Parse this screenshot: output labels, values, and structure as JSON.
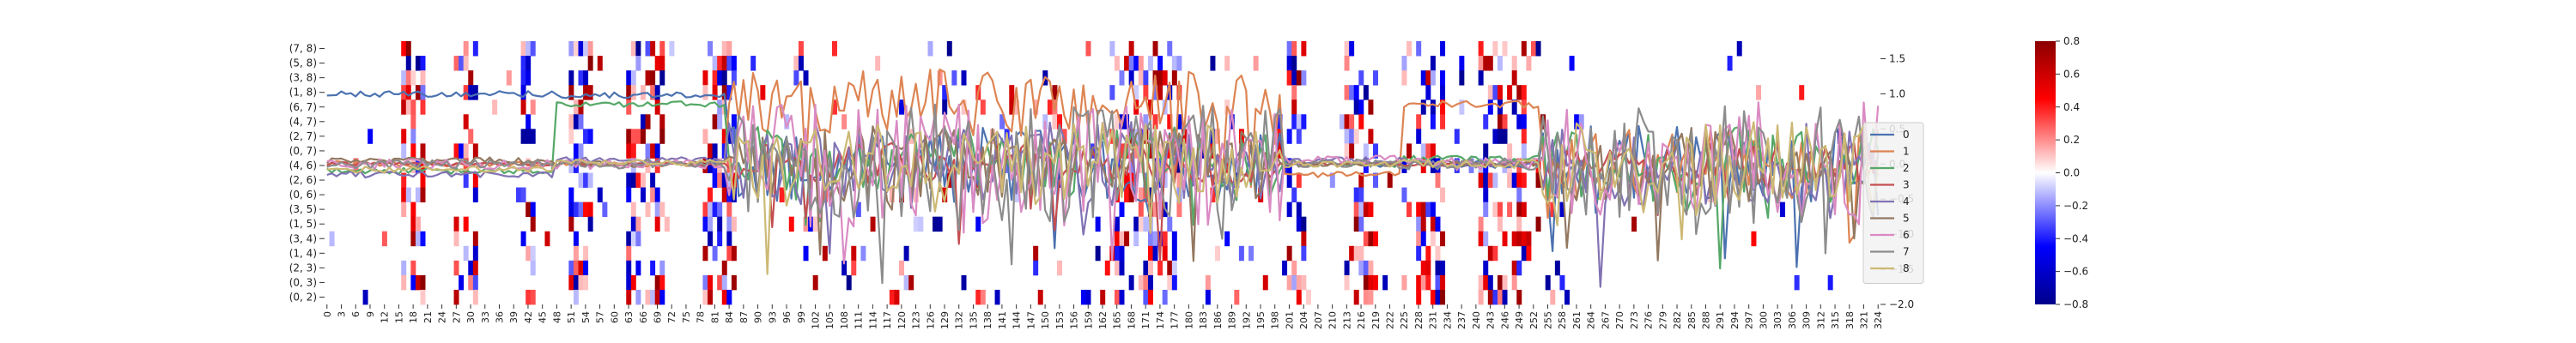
{
  "chart_data": [
    {
      "type": "heatmap",
      "title": "",
      "xlabel": "",
      "ylabel": "",
      "x_tick_labels": [
        "0",
        "3",
        "6",
        "9",
        "12",
        "15",
        "18",
        "21",
        "24",
        "27",
        "30",
        "33",
        "36",
        "39",
        "42",
        "45",
        "48",
        "51",
        "54",
        "57",
        "60",
        "63",
        "66",
        "69",
        "72",
        "75",
        "78",
        "81",
        "84",
        "87",
        "90",
        "93",
        "96",
        "99",
        "102",
        "105",
        "108",
        "111",
        "114",
        "117",
        "120",
        "123",
        "126",
        "129",
        "132",
        "135",
        "138",
        "141",
        "144",
        "147",
        "150",
        "153",
        "156",
        "159",
        "162",
        "165",
        "168",
        "171",
        "174",
        "177",
        "180",
        "183",
        "186",
        "189",
        "192",
        "195",
        "198",
        "201",
        "204",
        "207",
        "210",
        "213",
        "216",
        "219",
        "222",
        "225",
        "228",
        "231",
        "234",
        "237",
        "240",
        "243",
        "246",
        "249",
        "252",
        "255",
        "258",
        "261",
        "264",
        "267",
        "270",
        "273",
        "276",
        "279",
        "282",
        "285",
        "288",
        "291",
        "294",
        "297",
        "300",
        "303",
        "306",
        "309",
        "312",
        "315",
        "318",
        "321",
        "324"
      ],
      "y_tick_labels": [
        "(7, 8)",
        "(5, 8)",
        "(3, 8)",
        "(1, 8)",
        "(6, 7)",
        "(4, 7)",
        "(2, 7)",
        "(0, 7)",
        "(4, 6)",
        "(2, 6)",
        "(0, 6)",
        "(3, 5)",
        "(1, 5)",
        "(3, 4)",
        "(1, 4)",
        "(2, 3)",
        "(0, 3)",
        "(0, 2)"
      ],
      "x_range": [
        0,
        325
      ],
      "colorbar": {
        "ticks": [
          "0.8",
          "0.6",
          "0.4",
          "0.2",
          "0.0",
          "−0.2",
          "−0.4",
          "−0.6",
          "−0.8"
        ],
        "vmin": -0.8,
        "vmax": 0.8,
        "colors": {
          "low": "#00008b",
          "mid": "#ffffff",
          "high": "#8b0000"
        }
      },
      "note_cells": "sparse cells with values in [-0.8, 0.8]; dense activity around x≈16-20, 27-31, 41-43, 51-55, 63-70, 79-85, 164-178, 201-204, 213-219, 228-233, 241-250"
    },
    {
      "type": "line",
      "right_axis_ticks": [
        "1.5",
        "1.0",
        "0.5",
        "0.0",
        "−0.5",
        "−1.0",
        "−1.5",
        "−2.0"
      ],
      "ylim": [
        -2.0,
        1.75
      ],
      "legend_position": "right",
      "legend_labels": [
        "0",
        "1",
        "2",
        "3",
        "4",
        "5",
        "6",
        "7",
        "8"
      ],
      "series_colors": [
        "#4c72b0",
        "#dd8452",
        "#55a868",
        "#c44e52",
        "#8172b3",
        "#937860",
        "#da8bc3",
        "#8c8c8c",
        "#ccb974"
      ],
      "series_levels": {
        "segment_edges": [
          0,
          48,
          84,
          200,
          225,
          254,
          325
        ],
        "levels": [
          [
            1.0,
            0.98,
            0.0,
            0.0,
            0.0,
            0.0
          ],
          [
            0.0,
            0.0,
            0.85,
            -0.15,
            0.85,
            0.0
          ],
          [
            -0.1,
            0.85,
            0.0,
            0.0,
            0.08,
            0.0
          ],
          [
            0.0,
            0.0,
            0.0,
            0.0,
            0.0,
            0.0
          ],
          [
            -0.15,
            0.05,
            0.0,
            0.05,
            0.0,
            0.0
          ],
          [
            0.05,
            0.0,
            0.0,
            0.0,
            0.0,
            0.0
          ],
          [
            0.0,
            0.0,
            0.0,
            0.05,
            0.0,
            0.0
          ],
          [
            0.0,
            0.0,
            0.0,
            0.0,
            0.0,
            0.0
          ],
          [
            -0.08,
            0.02,
            0.0,
            0.0,
            0.0,
            0.0
          ]
        ],
        "volatility": [
          0.55,
          0.5,
          0.55,
          0.3,
          0.6,
          0.55,
          0.9,
          0.85,
          0.6
        ]
      }
    }
  ]
}
